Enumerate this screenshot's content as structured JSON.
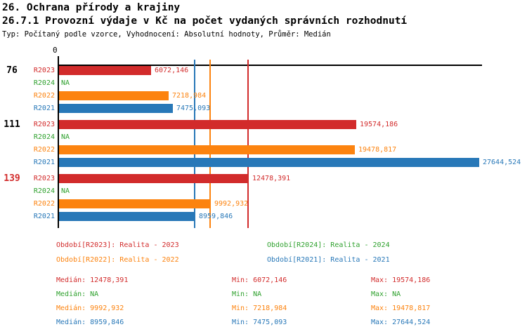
{
  "header": {
    "title": "26. Ochrana přírody a krajiny",
    "subtitle": "26.7.1 Provozní výdaje v Kč na počet vydaných správních rozhodnutí",
    "meta": "Typ: Počítaný podle vzorce, Vyhodnocení: Absolutní hodnoty, Průměr: Medián"
  },
  "colors": {
    "series": {
      "R2023": "#d22b2b",
      "R2024": "#2fa12e",
      "R2022": "#fc830f",
      "R2021": "#2878b8"
    },
    "axis": "#000000",
    "highlight_group": "#d22b2b",
    "group_label": "#000000"
  },
  "chart_data": {
    "type": "bar",
    "orientation": "horizontal",
    "axis": {
      "zero_label": "0",
      "x_min": 0
    },
    "series_order": [
      "R2023",
      "R2024",
      "R2022",
      "R2021"
    ],
    "groups": [
      {
        "label": "76",
        "highlight": false,
        "rows": [
          {
            "series": "R2023",
            "value": 6072.146,
            "display": "6072,146"
          },
          {
            "series": "R2024",
            "value": null,
            "display": "NA"
          },
          {
            "series": "R2022",
            "value": 7218.984,
            "display": "7218,984"
          },
          {
            "series": "R2021",
            "value": 7475.093,
            "display": "7475,093"
          }
        ]
      },
      {
        "label": "111",
        "highlight": false,
        "rows": [
          {
            "series": "R2023",
            "value": 19574.186,
            "display": "19574,186"
          },
          {
            "series": "R2024",
            "value": null,
            "display": "NA"
          },
          {
            "series": "R2022",
            "value": 19478.817,
            "display": "19478,817"
          },
          {
            "series": "R2021",
            "value": 27644.524,
            "display": "27644,524"
          }
        ]
      },
      {
        "label": "139",
        "highlight": true,
        "rows": [
          {
            "series": "R2023",
            "value": 12478.391,
            "display": "12478,391"
          },
          {
            "series": "R2024",
            "value": null,
            "display": "NA"
          },
          {
            "series": "R2022",
            "value": 9992.932,
            "display": "9992,932"
          },
          {
            "series": "R2021",
            "value": 8959.846,
            "display": "8959,846"
          }
        ]
      }
    ],
    "median_lines": [
      {
        "series": "R2023",
        "value": 12478.391
      },
      {
        "series": "R2022",
        "value": 9992.932
      },
      {
        "series": "R2021",
        "value": 8959.846
      }
    ]
  },
  "legend": {
    "items": [
      {
        "series": "R2023",
        "text": "Období[R2023]: Realita - 2023"
      },
      {
        "series": "R2024",
        "text": "Období[R2024]: Realita - 2024"
      },
      {
        "series": "R2022",
        "text": "Období[R2022]: Realita - 2022"
      },
      {
        "series": "R2021",
        "text": "Období[R2021]: Realita - 2021"
      }
    ]
  },
  "stats": {
    "labels": {
      "median": "Medián",
      "min": "Min",
      "max": "Max"
    },
    "rows": [
      {
        "series": "R2023",
        "median": "12478,391",
        "min": "6072,146",
        "max": "19574,186"
      },
      {
        "series": "R2024",
        "median": "NA",
        "min": "NA",
        "max": "NA"
      },
      {
        "series": "R2022",
        "median": "9992,932",
        "min": "7218,984",
        "max": "19478,817"
      },
      {
        "series": "R2021",
        "median": "8959,846",
        "min": "7475,093",
        "max": "27644,524"
      }
    ]
  }
}
